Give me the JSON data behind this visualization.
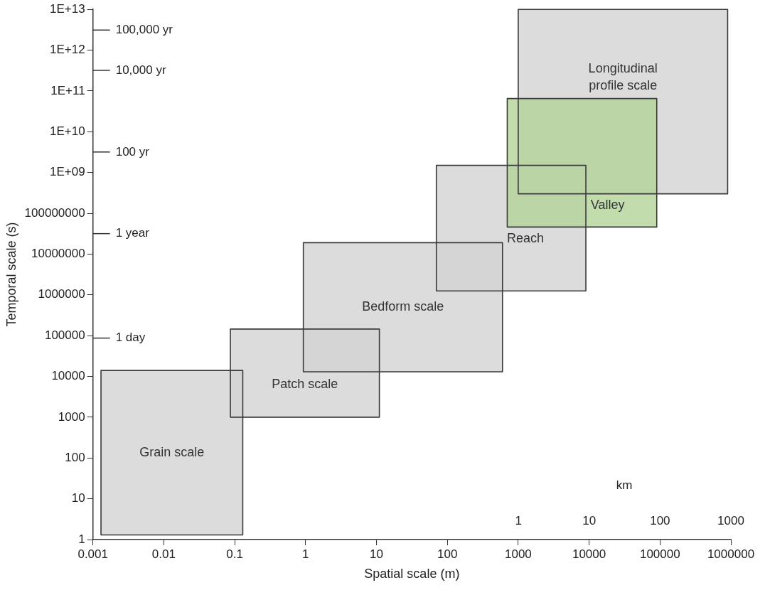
{
  "chart_data": {
    "type": "area",
    "xlabel": "Spatial scale (m)",
    "ylabel": "Temporal scale (s)",
    "log": "xy",
    "grid": false,
    "legend": false,
    "xlim": [
      0.001,
      1000000
    ],
    "xticks": [
      0.001,
      0.01,
      0.1,
      1,
      10,
      100,
      1000,
      10000,
      100000,
      1000000
    ],
    "ylim": [
      1,
      10000000000000
    ],
    "yticks": [
      1,
      10,
      100,
      1000,
      10000,
      100000,
      1000000,
      10000000,
      100000000,
      {
        "value": 1000000000,
        "label": "1E+09"
      },
      {
        "value": 10000000000,
        "label": "1E+10"
      },
      {
        "value": 100000000000,
        "label": "1E+11"
      },
      {
        "value": 1000000000000,
        "label": "1E+12"
      },
      {
        "value": 10000000000000,
        "label": "1E+13"
      }
    ],
    "annotations": [
      "100,000 yr",
      "10,000 yr",
      "100 yr",
      "1 year",
      "1 day",
      "km",
      "1",
      "10",
      "100",
      "1000"
    ],
    "series": [
      {
        "name": "Grain scale",
        "color": "#d3d3d5",
        "x": [
          0.0013,
          0.0013,
          0.13,
          0.13
        ],
        "values": [
          1.3,
          14000,
          14000,
          1.3
        ]
      },
      {
        "name": "Patch scale",
        "color": "#d3d3d5",
        "x": [
          0.087,
          0.087,
          11,
          11
        ],
        "values": [
          1000,
          145000,
          145000,
          1000
        ]
      },
      {
        "name": "Bedform scale",
        "color": "#d3d3d5",
        "x": [
          0.93,
          0.93,
          600,
          600
        ],
        "values": [
          13000,
          19000000,
          19000000,
          13000
        ]
      },
      {
        "name": "Reach",
        "color": "#d3d3d5",
        "x": [
          70,
          70,
          9000,
          9000
        ],
        "values": [
          1250000,
          1500000000,
          1500000000,
          1250000
        ]
      },
      {
        "name": "Longitudinal profile scale",
        "color": "#d3d3d5",
        "x": [
          1000,
          1000,
          900000,
          900000
        ],
        "values": [
          300000000,
          10000000000000,
          10000000000000,
          300000000
        ]
      },
      {
        "name": "Valley",
        "color": "#b3d39a",
        "x": [
          700,
          700,
          90000,
          90000
        ],
        "values": [
          46000000,
          65000000000,
          65000000000,
          46000000
        ]
      }
    ]
  }
}
